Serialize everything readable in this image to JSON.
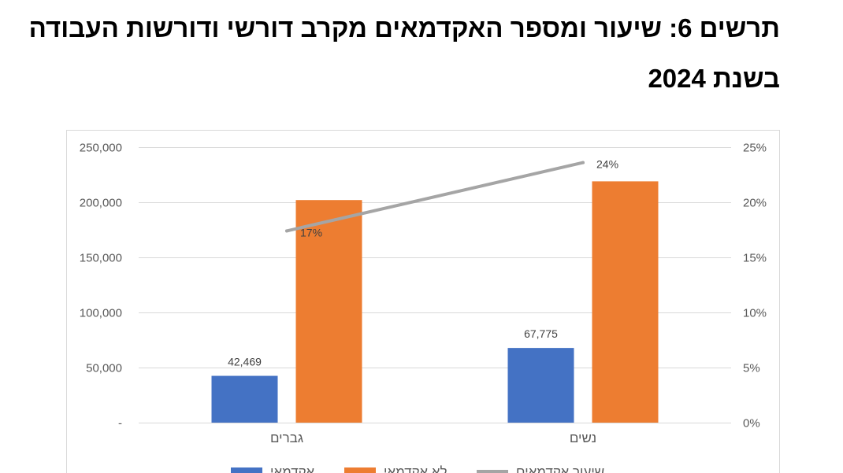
{
  "chart_data": {
    "type": "bar",
    "title": [
      "תרשים 6: שיעור ומספר האקדמאים מקרב דורשי ודורשות העבודה",
      "בשנת 2024"
    ],
    "categories": [
      "גברים",
      "נשים"
    ],
    "series": [
      {
        "name": "אקדמאי",
        "type": "bar",
        "axis": "left",
        "color": "#4472c4",
        "values": [
          42469,
          67775
        ],
        "data_labels": [
          "42,469",
          "67,775"
        ]
      },
      {
        "name": "לא אקדמאי",
        "type": "bar",
        "axis": "left",
        "color": "#ed7d31",
        "values": [
          202000,
          219000
        ]
      },
      {
        "name": "שיעור אקדמאים",
        "type": "line",
        "axis": "right",
        "color": "#a5a5a5",
        "unit": "%",
        "values": [
          17.4,
          23.6
        ],
        "data_labels": [
          "17%",
          "24%"
        ]
      }
    ],
    "y_left": {
      "range": [
        0,
        250000
      ],
      "ticks": [
        0,
        50000,
        100000,
        150000,
        200000,
        250000
      ],
      "tick_labels": [
        "-",
        "50,000",
        "100,000",
        "150,000",
        "200,000",
        "250,000"
      ]
    },
    "y_right": {
      "range": [
        0,
        25
      ],
      "unit": "%",
      "ticks": [
        0,
        5,
        10,
        15,
        20,
        25
      ],
      "tick_labels": [
        "0%",
        "5%",
        "10%",
        "15%",
        "20%",
        "25%"
      ]
    },
    "grid": true,
    "legend": "bottom"
  }
}
